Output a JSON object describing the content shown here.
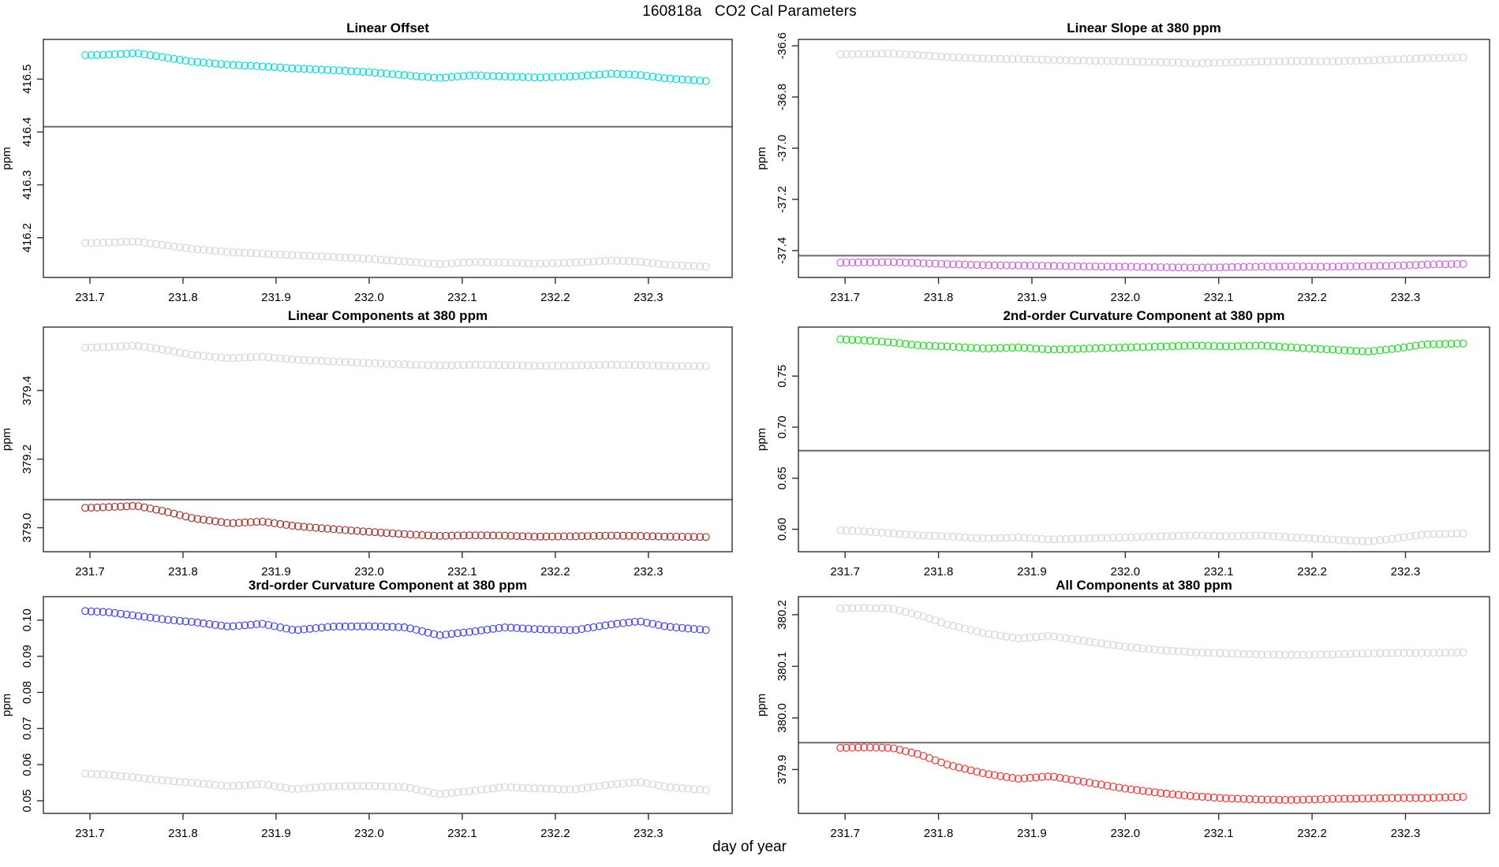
{
  "figure": {
    "title": "160818a   CO2 Cal Parameters",
    "xlabel": "day of year",
    "background": "#ffffff"
  },
  "colors": {
    "axis": "#2f2f2f",
    "text": "#000000",
    "reference_line": "#6a6a6a",
    "gray_series": "#d6d6d6",
    "cyan": "#00dddd",
    "violet": "#cc66dd",
    "brown": "#a5352f",
    "green": "#22dd22",
    "blue": "#4444ee",
    "red": "#f93232"
  },
  "chart_data": [
    {
      "type": "scatter",
      "title": "Linear Offset",
      "ylabel": "ppm",
      "xlim": [
        231.65,
        232.39
      ],
      "ylim": [
        416.125,
        416.575
      ],
      "xticks": {
        "values": [
          231.7,
          231.8,
          231.9,
          232.0,
          232.1,
          232.2,
          232.3
        ],
        "labels": [
          "231.7",
          "231.8",
          "231.9",
          "232.0",
          "232.1",
          "232.2",
          "232.3"
        ]
      },
      "yticks": {
        "values": [
          416.2,
          416.3,
          416.4,
          416.5
        ],
        "labels": [
          "416.2",
          "416.3",
          "416.4",
          "416.5"
        ]
      },
      "hline": 416.41,
      "anchor_x": [
        231.695,
        231.72,
        231.75,
        231.78,
        231.81,
        231.85,
        231.885,
        231.92,
        231.96,
        232.0,
        232.04,
        232.075,
        232.11,
        232.145,
        232.18,
        232.22,
        232.26,
        232.29,
        232.32,
        232.365
      ],
      "series": [
        {
          "name": "cyan",
          "color_key": "cyan",
          "y": [
            416.545,
            416.546,
            416.549,
            416.541,
            416.533,
            416.527,
            416.524,
            416.52,
            416.517,
            416.513,
            416.507,
            416.502,
            416.507,
            416.505,
            416.503,
            416.505,
            416.51,
            416.508,
            416.501,
            416.496
          ]
        },
        {
          "name": "gray",
          "color_key": "gray_series",
          "y": [
            416.19,
            416.191,
            416.193,
            416.186,
            416.179,
            416.173,
            416.17,
            416.167,
            416.164,
            416.16,
            416.155,
            416.15,
            416.154,
            416.153,
            416.151,
            416.153,
            416.157,
            416.155,
            416.149,
            416.145
          ]
        }
      ]
    },
    {
      "type": "scatter",
      "title": "Linear Slope at 380 ppm",
      "ylabel": "ppm",
      "xlim": [
        231.65,
        232.39
      ],
      "ylim": [
        -37.505,
        -36.575
      ],
      "xticks": {
        "values": [
          231.7,
          231.8,
          231.9,
          232.0,
          232.1,
          232.2,
          232.3
        ],
        "labels": [
          "231.7",
          "231.8",
          "231.9",
          "232.0",
          "232.1",
          "232.2",
          "232.3"
        ]
      },
      "yticks": {
        "values": [
          -37.4,
          -37.2,
          -37.0,
          -36.8,
          -36.6
        ],
        "labels": [
          "-37.4",
          "-37.2",
          "-37.0",
          "-36.8",
          "-36.6"
        ]
      },
      "hline": -37.42,
      "anchor_x": [
        231.695,
        231.72,
        231.75,
        231.78,
        231.81,
        231.85,
        231.885,
        231.92,
        231.96,
        232.0,
        232.04,
        232.075,
        232.11,
        232.145,
        232.18,
        232.22,
        232.26,
        232.29,
        232.32,
        232.365
      ],
      "series": [
        {
          "name": "gray",
          "color_key": "gray_series",
          "y": [
            -36.633,
            -36.632,
            -36.63,
            -36.637,
            -36.644,
            -36.65,
            -36.652,
            -36.655,
            -36.658,
            -36.661,
            -36.664,
            -36.668,
            -36.665,
            -36.662,
            -36.66,
            -36.661,
            -36.657,
            -36.653,
            -36.649,
            -36.645
          ]
        },
        {
          "name": "violet",
          "color_key": "violet",
          "y": [
            -37.447,
            -37.446,
            -37.445,
            -37.449,
            -37.453,
            -37.457,
            -37.458,
            -37.46,
            -37.462,
            -37.463,
            -37.465,
            -37.467,
            -37.465,
            -37.463,
            -37.462,
            -37.463,
            -37.461,
            -37.459,
            -37.455,
            -37.452
          ]
        }
      ]
    },
    {
      "type": "scatter",
      "title": "Linear Components at 380 ppm",
      "ylabel": "ppm",
      "xlim": [
        231.65,
        232.39
      ],
      "ylim": [
        378.93,
        379.585
      ],
      "xticks": {
        "values": [
          231.7,
          231.8,
          231.9,
          232.0,
          232.1,
          232.2,
          232.3
        ],
        "labels": [
          "231.7",
          "231.8",
          "231.9",
          "232.0",
          "232.1",
          "232.2",
          "232.3"
        ]
      },
      "yticks": {
        "values": [
          379.0,
          379.2,
          379.4
        ],
        "labels": [
          "379.0",
          "379.2",
          "379.4"
        ]
      },
      "hline": 379.082,
      "anchor_x": [
        231.695,
        231.72,
        231.75,
        231.78,
        231.81,
        231.85,
        231.885,
        231.92,
        231.96,
        232.0,
        232.04,
        232.075,
        232.11,
        232.145,
        232.18,
        232.22,
        232.26,
        232.29,
        232.32,
        232.365
      ],
      "series": [
        {
          "name": "gray",
          "color_key": "gray_series",
          "y": [
            379.525,
            379.527,
            379.531,
            379.519,
            379.504,
            379.494,
            379.499,
            379.49,
            379.485,
            379.48,
            379.476,
            379.473,
            379.475,
            379.474,
            379.472,
            379.473,
            379.475,
            379.474,
            379.472,
            379.471
          ]
        },
        {
          "name": "brown",
          "color_key": "brown",
          "y": [
            379.058,
            379.06,
            379.064,
            379.048,
            379.028,
            379.013,
            379.018,
            379.005,
            378.996,
            378.988,
            378.981,
            378.976,
            378.978,
            378.977,
            378.974,
            378.975,
            378.977,
            378.976,
            378.974,
            378.973
          ]
        }
      ]
    },
    {
      "type": "scatter",
      "title": "2nd-order Curvature Component at 380 ppm",
      "ylabel": "ppm",
      "xlim": [
        231.65,
        232.39
      ],
      "ylim": [
        0.578,
        0.798
      ],
      "xticks": {
        "values": [
          231.7,
          231.8,
          231.9,
          232.0,
          232.1,
          232.2,
          232.3
        ],
        "labels": [
          "231.7",
          "231.8",
          "231.9",
          "232.0",
          "232.1",
          "232.2",
          "232.3"
        ]
      },
      "yticks": {
        "values": [
          0.6,
          0.65,
          0.7,
          0.75
        ],
        "labels": [
          "0.60",
          "0.65",
          "0.70",
          "0.75"
        ]
      },
      "hline": 0.677,
      "anchor_x": [
        231.695,
        231.72,
        231.75,
        231.78,
        231.81,
        231.85,
        231.885,
        231.92,
        231.96,
        232.0,
        232.04,
        232.075,
        232.11,
        232.145,
        232.18,
        232.22,
        232.26,
        232.29,
        232.32,
        232.365
      ],
      "series": [
        {
          "name": "green",
          "color_key": "green",
          "y": [
            0.786,
            0.785,
            0.783,
            0.78,
            0.779,
            0.777,
            0.778,
            0.776,
            0.777,
            0.778,
            0.779,
            0.78,
            0.779,
            0.78,
            0.778,
            0.776,
            0.774,
            0.777,
            0.781,
            0.782
          ]
        },
        {
          "name": "gray",
          "color_key": "gray_series",
          "y": [
            0.599,
            0.598,
            0.596,
            0.594,
            0.593,
            0.591,
            0.592,
            0.59,
            0.591,
            0.592,
            0.593,
            0.594,
            0.593,
            0.594,
            0.592,
            0.59,
            0.588,
            0.591,
            0.595,
            0.596
          ]
        }
      ]
    },
    {
      "type": "scatter",
      "title": "3rd-order Curvature Component at 380 ppm",
      "ylabel": "ppm",
      "xlim": [
        231.65,
        232.39
      ],
      "ylim": [
        0.0465,
        0.1065
      ],
      "xticks": {
        "values": [
          231.7,
          231.8,
          231.9,
          232.0,
          232.1,
          232.2,
          232.3
        ],
        "labels": [
          "231.7",
          "231.8",
          "231.9",
          "232.0",
          "232.1",
          "232.2",
          "232.3"
        ]
      },
      "yticks": {
        "values": [
          0.05,
          0.06,
          0.07,
          0.08,
          0.09,
          0.1
        ],
        "labels": [
          "0.05",
          "0.06",
          "0.07",
          "0.08",
          "0.09",
          "0.10"
        ]
      },
      "hline": null,
      "anchor_x": [
        231.695,
        231.72,
        231.75,
        231.78,
        231.81,
        231.85,
        231.885,
        231.92,
        231.96,
        232.0,
        232.04,
        232.075,
        232.11,
        232.145,
        232.18,
        232.22,
        232.26,
        232.29,
        232.32,
        232.365
      ],
      "series": [
        {
          "name": "blue",
          "color_key": "blue",
          "y": [
            0.1025,
            0.1022,
            0.1012,
            0.1002,
            0.0995,
            0.0982,
            0.099,
            0.0972,
            0.0982,
            0.0983,
            0.098,
            0.0958,
            0.0968,
            0.098,
            0.0975,
            0.0972,
            0.0988,
            0.0997,
            0.0982,
            0.0972
          ]
        },
        {
          "name": "gray",
          "color_key": "gray_series",
          "y": [
            0.0575,
            0.0572,
            0.0564,
            0.0556,
            0.055,
            0.054,
            0.0546,
            0.0532,
            0.054,
            0.0541,
            0.0538,
            0.0518,
            0.0527,
            0.0538,
            0.0534,
            0.0531,
            0.0545,
            0.0552,
            0.0538,
            0.0529
          ]
        }
      ]
    },
    {
      "type": "scatter",
      "title": "All Components at 380 ppm",
      "ylabel": "ppm",
      "xlim": [
        231.65,
        232.39
      ],
      "ylim": [
        379.815,
        380.235
      ],
      "xticks": {
        "values": [
          231.7,
          231.8,
          231.9,
          232.0,
          232.1,
          232.2,
          232.3
        ],
        "labels": [
          "231.7",
          "231.8",
          "231.9",
          "232.0",
          "232.1",
          "232.2",
          "232.3"
        ]
      },
      "yticks": {
        "values": [
          379.9,
          380.0,
          380.1,
          380.2
        ],
        "labels": [
          "379.9",
          "380.0",
          "380.1",
          "380.2"
        ]
      },
      "hline": 379.952,
      "anchor_x": [
        231.695,
        231.72,
        231.75,
        231.78,
        231.81,
        231.85,
        231.885,
        231.92,
        231.96,
        232.0,
        232.04,
        232.075,
        232.11,
        232.145,
        232.18,
        232.22,
        232.26,
        232.29,
        232.32,
        232.365
      ],
      "series": [
        {
          "name": "gray",
          "color_key": "gray_series",
          "y": [
            380.212,
            380.213,
            380.212,
            380.199,
            380.181,
            380.164,
            380.154,
            380.159,
            380.148,
            380.138,
            380.131,
            380.127,
            380.125,
            380.123,
            380.122,
            380.123,
            380.125,
            380.126,
            380.126,
            380.127
          ]
        },
        {
          "name": "red",
          "color_key": "red",
          "y": [
            379.942,
            379.943,
            379.942,
            379.929,
            379.909,
            379.892,
            379.882,
            379.887,
            379.875,
            379.863,
            379.854,
            379.848,
            379.844,
            379.842,
            379.841,
            379.843,
            379.844,
            379.845,
            379.845,
            379.847
          ]
        }
      ]
    }
  ]
}
